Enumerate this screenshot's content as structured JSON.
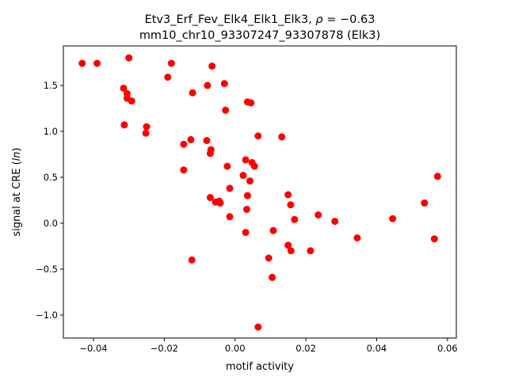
{
  "chart_data": {
    "type": "scatter",
    "title_line1": "Etv3_Erf_Fev_Elk4_Elk1_Elk3, ",
    "title_rho": "ρ",
    "title_rho_value": " = −0.63",
    "title_line2": "mm10_chr10_93307247_93307878 (Elk3)",
    "xlabel": "motif activity",
    "ylabel": "signal at CRE (",
    "ylabel_ln": "ln",
    "ylabel_end": ")",
    "xlim": [
      -0.0485,
      0.0625
    ],
    "ylim": [
      -1.25,
      1.93
    ],
    "xticks": [
      -0.04,
      -0.02,
      0.0,
      0.02,
      0.04,
      0.06
    ],
    "xtick_labels": [
      "−0.04",
      "−0.02",
      "0.00",
      "0.02",
      "0.04",
      "0.06"
    ],
    "yticks": [
      -1.0,
      -0.5,
      0.0,
      0.5,
      1.0,
      1.5
    ],
    "ytick_labels": [
      "−1.0",
      "−0.5",
      "0.0",
      "0.5",
      "1.0",
      "1.5"
    ],
    "marker_color": "#ff0000",
    "grid": false,
    "points": [
      {
        "x": -0.0432,
        "y": 1.74
      },
      {
        "x": -0.039,
        "y": 1.74
      },
      {
        "x": -0.03,
        "y": 1.8
      },
      {
        "x": -0.018,
        "y": 1.74
      },
      {
        "x": -0.0065,
        "y": 1.71
      },
      {
        "x": -0.0315,
        "y": 1.47
      },
      {
        "x": -0.0305,
        "y": 1.41
      },
      {
        "x": -0.0305,
        "y": 1.36
      },
      {
        "x": -0.0292,
        "y": 1.33
      },
      {
        "x": -0.019,
        "y": 1.59
      },
      {
        "x": -0.012,
        "y": 1.42
      },
      {
        "x": -0.0078,
        "y": 1.5
      },
      {
        "x": -0.003,
        "y": 1.52
      },
      {
        "x": 0.0035,
        "y": 1.32
      },
      {
        "x": 0.0045,
        "y": 1.31
      },
      {
        "x": -0.0027,
        "y": 1.23
      },
      {
        "x": -0.0313,
        "y": 1.07
      },
      {
        "x": -0.025,
        "y": 1.05
      },
      {
        "x": -0.0252,
        "y": 0.98
      },
      {
        "x": -0.0145,
        "y": 0.86
      },
      {
        "x": -0.0125,
        "y": 0.91
      },
      {
        "x": -0.008,
        "y": 0.9
      },
      {
        "x": -0.0068,
        "y": 0.8
      },
      {
        "x": -0.007,
        "y": 0.76
      },
      {
        "x": 0.0065,
        "y": 0.95
      },
      {
        "x": 0.0132,
        "y": 0.94
      },
      {
        "x": -0.0145,
        "y": 0.58
      },
      {
        "x": 0.003,
        "y": 0.69
      },
      {
        "x": 0.0048,
        "y": 0.66
      },
      {
        "x": 0.0055,
        "y": 0.62
      },
      {
        "x": -0.0022,
        "y": 0.62
      },
      {
        "x": 0.0023,
        "y": 0.52
      },
      {
        "x": 0.0042,
        "y": 0.46
      },
      {
        "x": -0.0015,
        "y": 0.38
      },
      {
        "x": -0.007,
        "y": 0.28
      },
      {
        "x": -0.0055,
        "y": 0.23
      },
      {
        "x": -0.0045,
        "y": 0.24
      },
      {
        "x": -0.0042,
        "y": 0.22
      },
      {
        "x": 0.0035,
        "y": 0.3
      },
      {
        "x": 0.0033,
        "y": 0.15
      },
      {
        "x": 0.015,
        "y": 0.31
      },
      {
        "x": 0.0157,
        "y": 0.2
      },
      {
        "x": 0.0168,
        "y": 0.04
      },
      {
        "x": -0.0015,
        "y": 0.07
      },
      {
        "x": 0.0235,
        "y": 0.09
      },
      {
        "x": 0.0282,
        "y": 0.02
      },
      {
        "x": 0.0445,
        "y": 0.05
      },
      {
        "x": 0.0535,
        "y": 0.22
      },
      {
        "x": 0.0572,
        "y": 0.51
      },
      {
        "x": 0.003,
        "y": -0.1
      },
      {
        "x": 0.0108,
        "y": -0.08
      },
      {
        "x": 0.0345,
        "y": -0.16
      },
      {
        "x": 0.0563,
        "y": -0.17
      },
      {
        "x": 0.015,
        "y": -0.24
      },
      {
        "x": 0.0158,
        "y": -0.3
      },
      {
        "x": 0.0213,
        "y": -0.3
      },
      {
        "x": 0.0095,
        "y": -0.38
      },
      {
        "x": -0.0122,
        "y": -0.4
      },
      {
        "x": 0.0105,
        "y": -0.59
      },
      {
        "x": 0.0065,
        "y": -1.13
      }
    ]
  }
}
